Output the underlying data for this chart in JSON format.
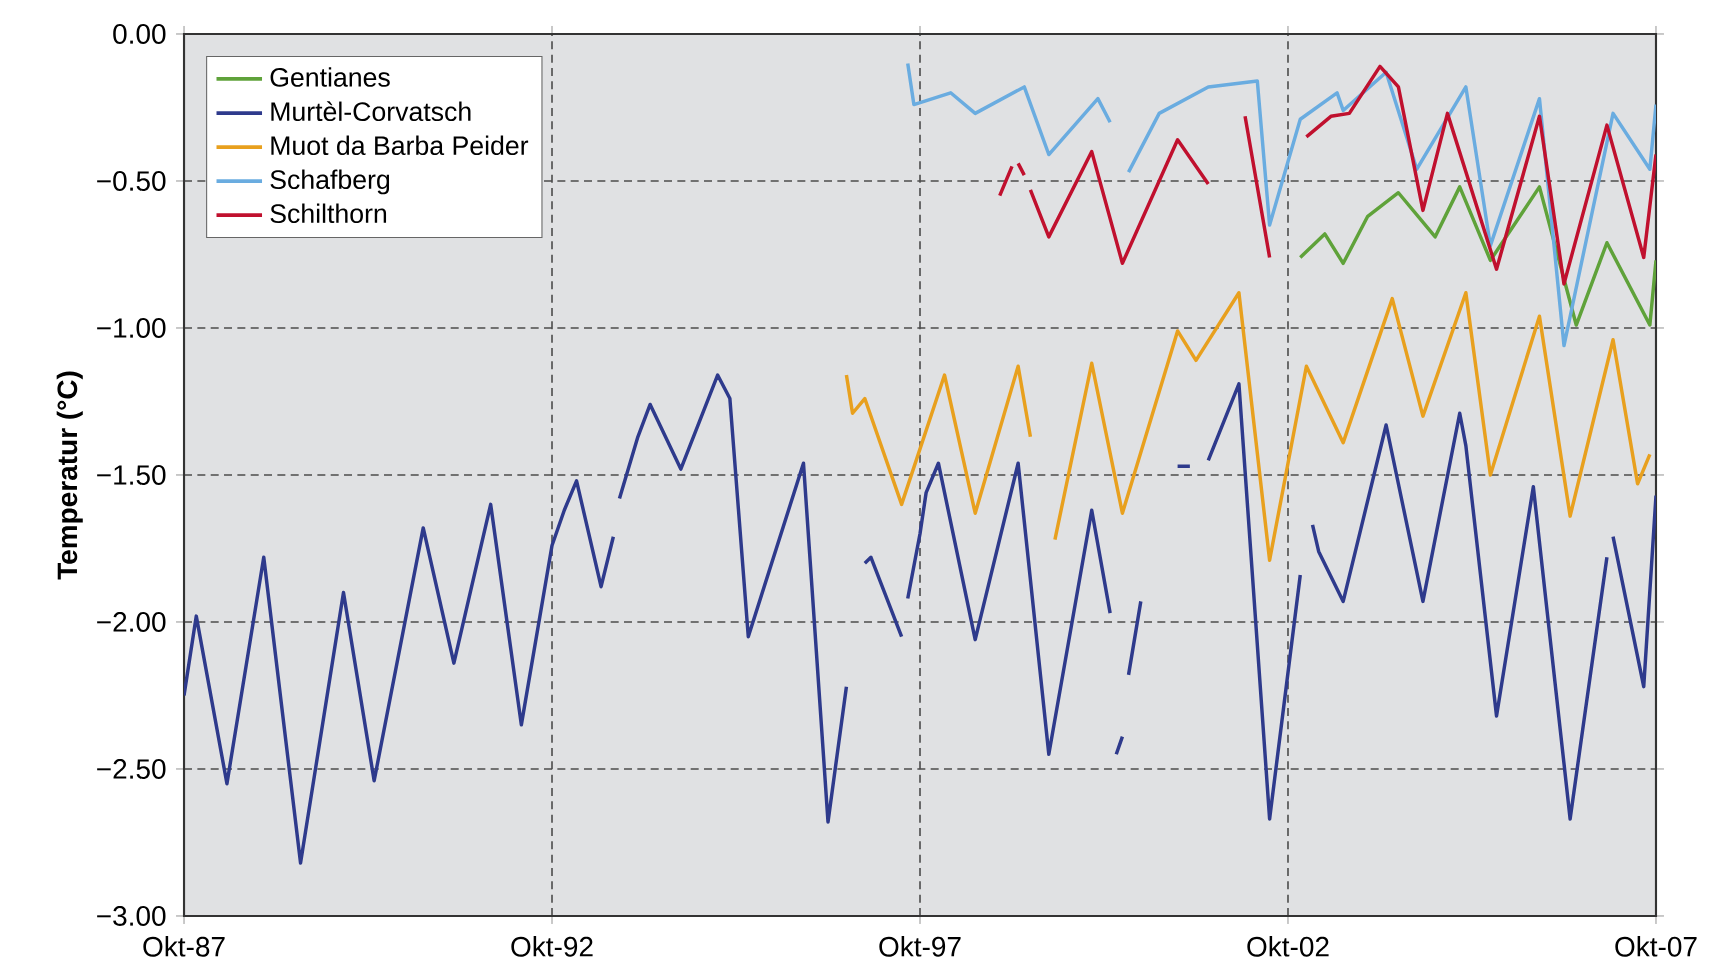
{
  "chart_data": {
    "type": "line",
    "ylabel": "Temperatur (°C)",
    "xlim": [
      "1987-10",
      "2007-10"
    ],
    "xticks": [
      {
        "value": "1987-10",
        "label": "Okt-87"
      },
      {
        "value": "1992-10",
        "label": "Okt-92"
      },
      {
        "value": "1997-10",
        "label": "Okt-97"
      },
      {
        "value": "2002-10",
        "label": "Okt-02"
      },
      {
        "value": "2007-10",
        "label": "Okt-07"
      }
    ],
    "ylim": [
      -3,
      0
    ],
    "yticks": [
      {
        "value": 0,
        "label": "0.00"
      },
      {
        "value": -0.5,
        "label": "−0.50"
      },
      {
        "value": -1,
        "label": "−1.00"
      },
      {
        "value": -1.5,
        "label": "−1.50"
      },
      {
        "value": -2,
        "label": "−2.00"
      },
      {
        "value": -2.5,
        "label": "−2.50"
      },
      {
        "value": -3,
        "label": "−3.00"
      }
    ],
    "grid": true,
    "legend": "top left",
    "marker": "none",
    "line_style": "solid",
    "series": [
      {
        "name": "Gentianes",
        "color": "#5fa23a",
        "x": [
          "2002-12",
          "2003-04",
          "2003-07",
          "2003-11",
          "2004-04",
          "2004-10",
          "2005-02",
          "2005-07",
          "2006-03",
          "2006-09",
          "2007-02",
          "2007-09",
          "2007-10"
        ],
        "values": [
          -0.76,
          -0.68,
          -0.78,
          -0.62,
          -0.54,
          -0.69,
          -0.52,
          -0.77,
          -0.52,
          -0.99,
          -0.71,
          -0.99,
          -0.77
        ]
      },
      {
        "name": "Murtèl-Corvatsch",
        "color": "#2e3a8c",
        "x": [
          "1987-10",
          "1987-12",
          "1988-05",
          "1988-11",
          "1989-05",
          "1989-12",
          "1990-05",
          "1991-01",
          "1991-06",
          "1991-12",
          "1992-05",
          "1992-10",
          "1992-12",
          "1993-02",
          "1993-06",
          "1993-08",
          "1993-08-20",
          "1993-09",
          "1993-12",
          "1994-02",
          "1994-07",
          "1995-01",
          "1995-03",
          "1995-06",
          "1996-03",
          "1996-07",
          "1996-10",
          "1996-11",
          "1997-01",
          "1997-02",
          "1997-07",
          "1997-07-20",
          "1997-08",
          "1997-10",
          "1997-11",
          "1998-01",
          "1998-07",
          "1999-02",
          "1999-07",
          "2000-02",
          "2000-05",
          "2000-05-20",
          "2000-06",
          "2000-07",
          "2000-07-20",
          "2000-08",
          "2000-10",
          "2001-01",
          "2001-04",
          "2001-06",
          "2001-07",
          "2001-09",
          "2002-02",
          "2002-07",
          "2002-12",
          "2003-01",
          "2003-02",
          "2003-03",
          "2003-07",
          "2004-02",
          "2004-08",
          "2005-02",
          "2005-03",
          "2005-08",
          "2006-02",
          "2006-08",
          "2007-02",
          "2007-02-20",
          "2007-03",
          "2007-08",
          "2007-10"
        ],
        "values": [
          -2.25,
          -1.98,
          -2.55,
          -1.78,
          -2.82,
          -1.9,
          -2.54,
          -1.68,
          -2.14,
          -1.6,
          -2.35,
          -1.74,
          -1.62,
          -1.52,
          -1.88,
          -1.71,
          null,
          -1.58,
          -1.37,
          -1.26,
          -1.48,
          -1.16,
          -1.24,
          -2.05,
          -1.46,
          -2.68,
          -2.22,
          null,
          -1.8,
          -1.78,
          -2.05,
          null,
          -1.92,
          -1.7,
          -1.56,
          -1.46,
          -2.06,
          -1.46,
          -2.45,
          -1.62,
          -1.97,
          null,
          -2.45,
          -2.39,
          null,
          -2.18,
          -1.93,
          null,
          -1.47,
          -1.47,
          null,
          -1.45,
          -1.19,
          -2.67,
          -1.84,
          null,
          -1.67,
          -1.76,
          -1.93,
          -1.33,
          -1.93,
          -1.29,
          -1.4,
          -2.32,
          -1.54,
          -2.67,
          -1.78,
          null,
          -1.71,
          -2.22,
          -1.57
        ]
      },
      {
        "name": "Muot da Barba Peider",
        "color": "#e8a01e",
        "x": [
          "1996-10",
          "1996-11",
          "1997-01",
          "1997-07",
          "1998-02",
          "1998-07",
          "1999-02",
          "1999-04",
          "1999-06",
          "1999-08",
          "2000-02",
          "2000-07",
          "2001-04",
          "2001-07",
          "2002-02",
          "2002-07",
          "2003-01",
          "2003-07",
          "2004-03",
          "2004-08",
          "2005-03",
          "2005-07",
          "2006-03",
          "2006-08",
          "2007-03",
          "2007-07",
          "2007-09"
        ],
        "values": [
          -1.16,
          -1.29,
          -1.24,
          -1.6,
          -1.16,
          -1.63,
          -1.13,
          -1.37,
          null,
          -1.72,
          -1.12,
          -1.63,
          -1.01,
          -1.11,
          -0.88,
          -1.79,
          -1.13,
          -1.39,
          -0.9,
          -1.3,
          -0.88,
          -1.5,
          -0.96,
          -1.64,
          -1.04,
          -1.53,
          -1.43
        ]
      },
      {
        "name": "Schafberg",
        "color": "#6aace0",
        "x": [
          "1997-08",
          "1997-09",
          "1998-03",
          "1998-07",
          "1999-03",
          "1999-07",
          "2000-03",
          "2000-05",
          "2000-06",
          "2000-08",
          "2001-01",
          "2001-09",
          "2002-05",
          "2002-07",
          "2002-12",
          "2003-06",
          "2003-07",
          "2004-02",
          "2004-07",
          "2005-03",
          "2005-07",
          "2006-03",
          "2006-07",
          "2007-03",
          "2007-09",
          "2007-10"
        ],
        "values": [
          -0.1,
          -0.24,
          -0.2,
          -0.27,
          -0.18,
          -0.41,
          -0.22,
          -0.3,
          null,
          -0.47,
          -0.27,
          -0.18,
          -0.16,
          -0.65,
          -0.29,
          -0.2,
          -0.26,
          -0.13,
          -0.46,
          -0.18,
          -0.72,
          -0.22,
          -1.06,
          -0.27,
          -0.46,
          -0.24
        ]
      },
      {
        "name": "Schilthorn",
        "color": "#c0102e",
        "x": [
          "1998-11",
          "1999-01",
          "1999-01-20",
          "1999-02",
          "1999-03",
          "1999-03-20",
          "1999-04",
          "1999-07",
          "2000-02",
          "2000-07",
          "2001-04",
          "2001-09",
          "2001-12",
          "2002-03",
          "2002-07",
          "2002-10",
          "2003-01",
          "2003-05",
          "2003-08",
          "2004-01",
          "2004-04",
          "2004-08",
          "2004-12",
          "2005-08",
          "2006-03",
          "2006-07",
          "2007-02",
          "2007-08",
          "2007-10"
        ],
        "values": [
          -0.55,
          -0.45,
          null,
          -0.44,
          -0.48,
          null,
          -0.53,
          -0.69,
          -0.4,
          -0.78,
          -0.36,
          -0.51,
          null,
          -0.28,
          -0.76,
          null,
          -0.35,
          -0.28,
          -0.27,
          -0.11,
          -0.18,
          -0.6,
          -0.27,
          -0.8,
          -0.28,
          -0.85,
          -0.31,
          -0.76,
          -0.41
        ]
      }
    ]
  }
}
